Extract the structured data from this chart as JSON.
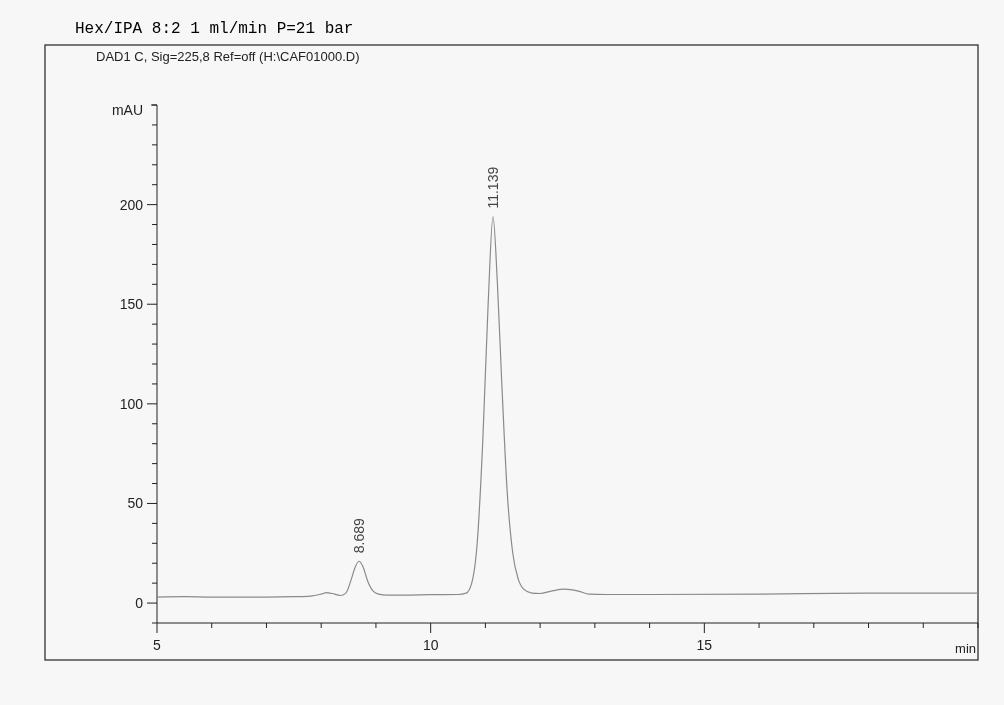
{
  "chart_data": {
    "type": "line",
    "title": "Hex/IPA 8:2 1 ml/min P=21 bar",
    "subtitle": "DAD1 C, Sig=225,8 Ref=off (H:\\CAF01000.D)",
    "xlabel": "min",
    "ylabel": "mAU",
    "x": [
      5,
      5.5,
      6,
      6.5,
      7,
      7.5,
      7.8,
      8.0,
      8.1,
      8.2,
      8.35,
      8.45,
      8.55,
      8.62,
      8.689,
      8.76,
      8.85,
      8.95,
      9.05,
      9.2,
      9.5,
      10,
      10.5,
      10.65,
      10.75,
      10.85,
      10.95,
      11.05,
      11.139,
      11.22,
      11.3,
      11.4,
      11.5,
      11.6,
      11.7,
      11.85,
      12.0,
      12.2,
      12.45,
      12.7,
      12.9,
      13.2,
      14,
      16,
      18,
      20
    ],
    "series": [
      {
        "color": "#8a8a8a",
        "values": [
          3,
          3.2,
          3,
          3,
          3,
          3.2,
          3.5,
          4.5,
          5.2,
          4.8,
          3.8,
          5,
          12,
          18,
          21,
          18.5,
          11,
          6,
          4.5,
          4,
          4,
          4.2,
          4.3,
          5,
          10,
          30,
          80,
          150,
          194,
          160,
          110,
          55,
          25,
          12,
          7,
          5,
          4.8,
          6,
          7,
          6,
          4.5,
          4.3,
          4.3,
          4.5,
          5,
          5
        ]
      }
    ],
    "xlim": [
      5,
      20
    ],
    "xticks": [
      5,
      {
        "value": 6,
        "label": null
      },
      {
        "value": 7,
        "label": null
      },
      {
        "value": 8,
        "label": null
      },
      {
        "value": 9,
        "label": null
      },
      10,
      {
        "value": 11,
        "label": null
      },
      {
        "value": 12,
        "label": null
      },
      {
        "value": 13,
        "label": null
      },
      {
        "value": 14,
        "label": null
      },
      15,
      {
        "value": 16,
        "label": null
      },
      {
        "value": 17,
        "label": null
      },
      {
        "value": 18,
        "label": null
      },
      {
        "value": 19,
        "label": null
      },
      {
        "value": 20,
        "label": null
      }
    ],
    "ylim": [
      -10,
      250
    ],
    "yticks": [
      {
        "value": -10,
        "label": null
      },
      0,
      {
        "value": 10,
        "label": null
      },
      {
        "value": 20,
        "label": null
      },
      {
        "value": 30,
        "label": null
      },
      {
        "value": 40,
        "label": null
      },
      50,
      {
        "value": 60,
        "label": null
      },
      {
        "value": 70,
        "label": null
      },
      {
        "value": 80,
        "label": null
      },
      {
        "value": 90,
        "label": null
      },
      100,
      {
        "value": 110,
        "label": null
      },
      {
        "value": 120,
        "label": null
      },
      {
        "value": 130,
        "label": null
      },
      {
        "value": 140,
        "label": null
      },
      150,
      {
        "value": 160,
        "label": null
      },
      {
        "value": 170,
        "label": null
      },
      {
        "value": 180,
        "label": null
      },
      {
        "value": 190,
        "label": null
      },
      200,
      {
        "value": 210,
        "label": null
      },
      {
        "value": 220,
        "label": null
      },
      {
        "value": 230,
        "label": null
      },
      {
        "value": 240,
        "label": null
      },
      {
        "value": 250,
        "label": null
      }
    ],
    "annotations": [
      {
        "text": "8.689",
        "x": 8.689,
        "y": 21
      },
      {
        "text": "11.139",
        "x": 11.139,
        "y": 194
      }
    ],
    "marker": "none",
    "line_style": "solid"
  }
}
